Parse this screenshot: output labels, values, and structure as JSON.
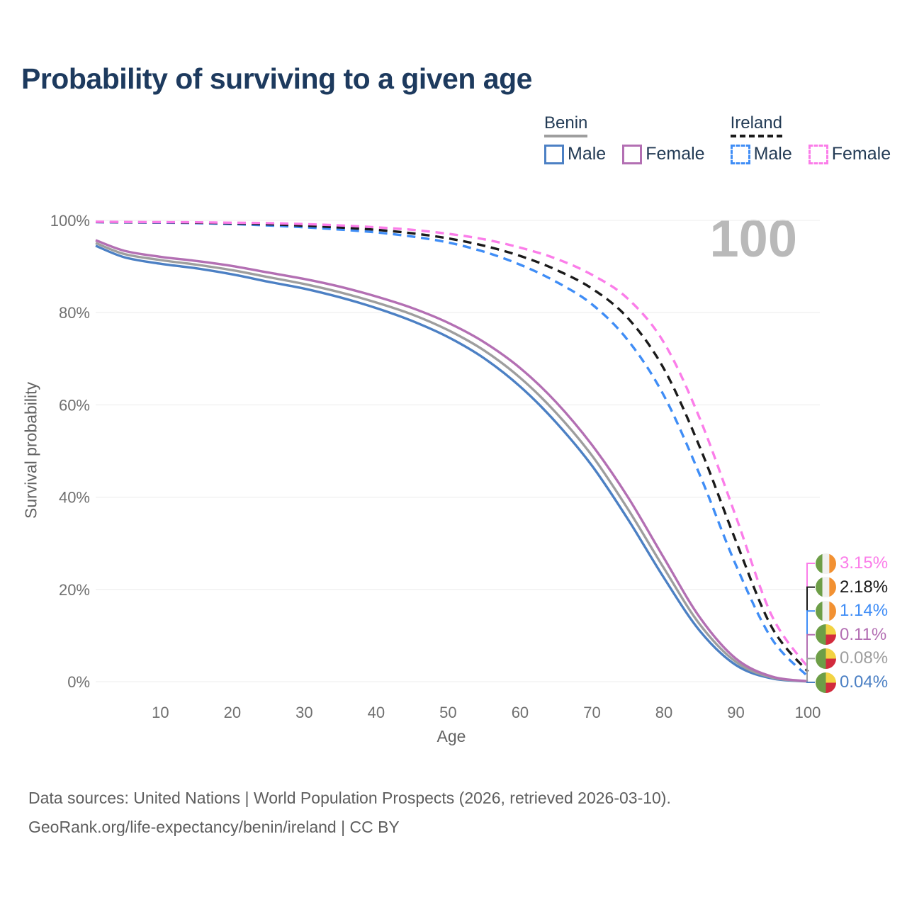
{
  "page": {
    "title": "Probability of surviving to a given age"
  },
  "legend": {
    "groups": [
      {
        "label": "Benin",
        "style": "solid",
        "underline_color": "#9e9e9e",
        "items": [
          {
            "label": "Male",
            "color": "#4c80c4"
          },
          {
            "label": "Female",
            "color": "#b36fb3"
          }
        ]
      },
      {
        "label": "Ireland",
        "style": "dashed",
        "underline_color": "#1a1a1a",
        "items": [
          {
            "label": "Male",
            "color": "#3f8df6"
          },
          {
            "label": "Female",
            "color": "#fb7de9"
          }
        ]
      }
    ]
  },
  "watermark": "100",
  "footer": {
    "line1": "Data sources: United Nations | World Population Prospects (2026, retrieved 2026-03-10).",
    "line2": "GeoRank.org/life-expectancy/benin/ireland | CC BY"
  },
  "chart_data": {
    "type": "line",
    "title": "Probability of surviving to a given age",
    "xlabel": "Age",
    "ylabel": "Survival probability",
    "xlim": [
      1,
      100
    ],
    "ylim": [
      0,
      100
    ],
    "xticks": [
      10,
      20,
      30,
      40,
      50,
      60,
      70,
      80,
      90,
      100
    ],
    "xtick_labels": [
      "10",
      "20",
      "30",
      "40",
      "50",
      "60",
      "70",
      "80",
      "90",
      "100"
    ],
    "yticks": [
      0,
      20,
      40,
      60,
      80,
      100
    ],
    "ytick_labels": [
      "0%",
      "20%",
      "40%",
      "60%",
      "80%",
      "100%"
    ],
    "grid": true,
    "grid_color": "#ececec",
    "legend_position": "top-right",
    "watermark_age": "100",
    "ages": [
      1,
      5,
      10,
      15,
      20,
      25,
      30,
      35,
      40,
      45,
      50,
      55,
      60,
      65,
      70,
      75,
      80,
      85,
      90,
      95,
      100
    ],
    "flag_colors": {
      "ireland": {
        "green": "#6d9e47",
        "white": "#f0f0ee",
        "orange": "#f29132"
      },
      "benin": {
        "green": "#6d9e47",
        "yellow": "#f2d343",
        "red": "#d22b3d"
      }
    },
    "series": [
      {
        "id": "benin-male",
        "name": "Benin Male",
        "country": "Benin",
        "sex": "male",
        "color": "#4c80c4",
        "line_style": "solid",
        "flag": "benin",
        "end_label": "0.04%",
        "values": [
          94.5,
          92.0,
          90.6,
          89.6,
          88.3,
          86.7,
          85.2,
          83.3,
          81.0,
          78.2,
          74.7,
          70.1,
          64.0,
          56.2,
          46.8,
          35.2,
          22.5,
          11.0,
          3.6,
          0.7,
          0.04
        ]
      },
      {
        "id": "benin-both",
        "name": "Benin",
        "country": "Benin",
        "sex": "both",
        "color": "#9e9e9e",
        "line_style": "solid",
        "flag": "benin",
        "end_label": "0.08%",
        "values": [
          95.1,
          92.7,
          91.4,
          90.4,
          89.2,
          87.7,
          86.2,
          84.4,
          82.2,
          79.6,
          76.2,
          71.8,
          65.9,
          58.3,
          49.0,
          37.4,
          24.6,
          12.4,
          4.3,
          0.9,
          0.08
        ]
      },
      {
        "id": "benin-female",
        "name": "Benin Female",
        "country": "Benin",
        "sex": "female",
        "color": "#b36fb3",
        "line_style": "solid",
        "flag": "benin",
        "end_label": "0.11%",
        "values": [
          95.7,
          93.4,
          92.1,
          91.2,
          90.1,
          88.7,
          87.3,
          85.6,
          83.5,
          81.0,
          77.8,
          73.6,
          68.0,
          60.6,
          51.3,
          40.0,
          26.8,
          13.9,
          5.0,
          1.1,
          0.11
        ]
      },
      {
        "id": "ireland-male",
        "name": "Ireland Male",
        "country": "Ireland",
        "sex": "male",
        "color": "#3f8df6",
        "line_style": "dashed",
        "flag": "ireland",
        "end_label": "1.14%",
        "values": [
          99.6,
          99.55,
          99.5,
          99.4,
          99.2,
          98.9,
          98.5,
          98.0,
          97.4,
          96.5,
          95.2,
          93.2,
          90.4,
          86.7,
          81.8,
          74.0,
          62.0,
          44.8,
          25.3,
          9.3,
          1.14
        ]
      },
      {
        "id": "ireland-both",
        "name": "Ireland",
        "country": "Ireland",
        "sex": "both",
        "color": "#1a1a1a",
        "line_style": "dashed",
        "flag": "ireland",
        "end_label": "2.18%",
        "values": [
          99.65,
          99.6,
          99.57,
          99.5,
          99.35,
          99.15,
          98.85,
          98.45,
          97.95,
          97.2,
          96.1,
          94.5,
          92.3,
          89.3,
          85.2,
          78.8,
          67.8,
          50.8,
          30.5,
          11.8,
          2.18
        ]
      },
      {
        "id": "ireland-female",
        "name": "Ireland Female",
        "country": "Ireland",
        "sex": "female",
        "color": "#fb7de9",
        "line_style": "dashed",
        "flag": "ireland",
        "end_label": "3.15%",
        "values": [
          99.7,
          99.65,
          99.62,
          99.58,
          99.5,
          99.4,
          99.2,
          98.9,
          98.5,
          97.95,
          97.1,
          95.9,
          94.1,
          91.7,
          88.2,
          83.0,
          73.5,
          57.0,
          35.8,
          14.3,
          3.15
        ]
      }
    ]
  }
}
